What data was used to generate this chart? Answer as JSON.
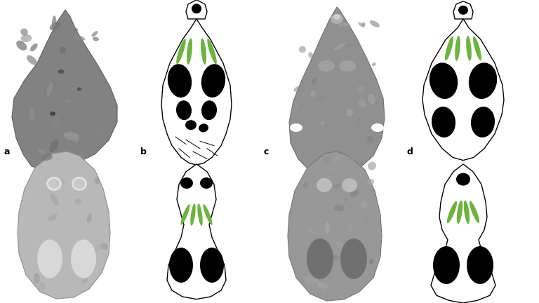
{
  "background_color": "#ffffff",
  "label_a": "a",
  "label_b": "b",
  "label_c": "c",
  "label_d": "d",
  "green_color": "#6db33f",
  "fig_width": 7.68,
  "fig_height": 4.32,
  "dpi": 100
}
